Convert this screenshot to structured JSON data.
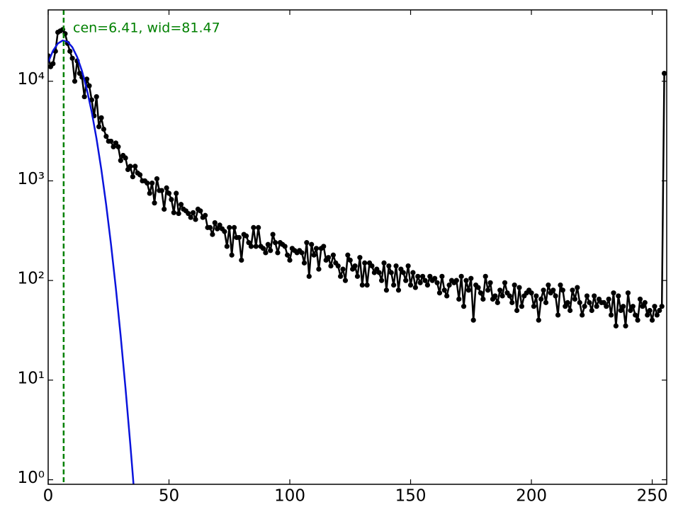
{
  "chart_data": {
    "type": "line",
    "log_y": true,
    "annotation": "cen=6.41, wid=81.47",
    "annotation_color": "#008000",
    "vline": 6.41,
    "vline_color": "#008000",
    "xlim": [
      0,
      256
    ],
    "ylim": [
      0.9,
      52000
    ],
    "xticks": [
      0,
      50,
      100,
      150,
      200,
      250
    ],
    "yticks": [
      {
        "value": 1,
        "label": "10⁰"
      },
      {
        "value": 10,
        "label": "10¹"
      },
      {
        "value": 100,
        "label": "10²"
      },
      {
        "value": 1000,
        "label": "10³"
      },
      {
        "value": 10000,
        "label": "10⁴"
      }
    ],
    "series": [
      {
        "color": "#000000",
        "markers": true,
        "x": [
          0,
          1,
          2,
          3,
          4,
          5,
          6,
          7,
          8,
          9,
          10,
          11,
          12,
          13,
          14,
          15,
          16,
          17,
          18,
          19,
          20,
          21,
          22,
          23,
          24,
          25,
          26,
          27,
          28,
          29,
          30,
          31,
          32,
          33,
          34,
          35,
          36,
          37,
          38,
          39,
          40,
          41,
          42,
          43,
          44,
          45,
          46,
          47,
          48,
          49,
          50,
          51,
          52,
          53,
          54,
          55,
          56,
          57,
          58,
          59,
          60,
          61,
          62,
          63,
          64,
          65,
          66,
          67,
          68,
          69,
          70,
          71,
          72,
          73,
          74,
          75,
          76,
          77,
          78,
          79,
          80,
          81,
          82,
          83,
          84,
          85,
          86,
          87,
          88,
          89,
          90,
          91,
          92,
          93,
          94,
          95,
          96,
          97,
          98,
          99,
          100,
          101,
          102,
          103,
          104,
          105,
          106,
          107,
          108,
          109,
          110,
          111,
          112,
          113,
          114,
          115,
          116,
          117,
          118,
          119,
          120,
          121,
          122,
          123,
          124,
          125,
          126,
          127,
          128,
          129,
          130,
          131,
          132,
          133,
          134,
          135,
          136,
          137,
          138,
          139,
          140,
          141,
          142,
          143,
          144,
          145,
          146,
          147,
          148,
          149,
          150,
          151,
          152,
          153,
          154,
          155,
          156,
          157,
          158,
          159,
          160,
          161,
          162,
          163,
          164,
          165,
          166,
          167,
          168,
          169,
          170,
          171,
          172,
          173,
          174,
          175,
          176,
          177,
          178,
          179,
          180,
          181,
          182,
          183,
          184,
          185,
          186,
          187,
          188,
          189,
          190,
          191,
          192,
          193,
          194,
          195,
          196,
          197,
          198,
          199,
          200,
          201,
          202,
          203,
          204,
          205,
          206,
          207,
          208,
          209,
          210,
          211,
          212,
          213,
          214,
          215,
          216,
          217,
          218,
          219,
          220,
          221,
          222,
          223,
          224,
          225,
          226,
          227,
          228,
          229,
          230,
          231,
          232,
          233,
          234,
          235,
          236,
          237,
          238,
          239,
          240,
          241,
          242,
          243,
          244,
          245,
          246,
          247,
          248,
          249,
          250,
          251,
          252,
          253,
          254,
          255
        ],
        "values": [
          18000,
          14000,
          15000,
          20000,
          31000,
          32000,
          33000,
          30000,
          24000,
          20000,
          17000,
          10000,
          16000,
          12000,
          11000,
          7000,
          10500,
          9000,
          6500,
          4500,
          7000,
          3500,
          4300,
          3300,
          2800,
          2500,
          2500,
          2200,
          2400,
          2200,
          1600,
          1800,
          1700,
          1300,
          1400,
          1100,
          1400,
          1200,
          1150,
          1000,
          1000,
          950,
          750,
          950,
          600,
          1050,
          800,
          800,
          520,
          850,
          750,
          650,
          480,
          750,
          470,
          580,
          520,
          500,
          470,
          430,
          480,
          410,
          520,
          500,
          430,
          450,
          340,
          340,
          290,
          380,
          330,
          360,
          330,
          310,
          220,
          340,
          180,
          340,
          270,
          270,
          160,
          290,
          280,
          240,
          220,
          340,
          220,
          340,
          220,
          210,
          190,
          230,
          200,
          290,
          240,
          190,
          240,
          230,
          220,
          180,
          160,
          210,
          200,
          190,
          200,
          190,
          150,
          240,
          110,
          230,
          180,
          210,
          130,
          210,
          220,
          160,
          170,
          140,
          180,
          150,
          140,
          110,
          130,
          100,
          180,
          160,
          130,
          140,
          110,
          170,
          90,
          150,
          90,
          150,
          140,
          120,
          130,
          120,
          100,
          150,
          80,
          140,
          120,
          90,
          140,
          80,
          130,
          120,
          100,
          140,
          90,
          120,
          85,
          110,
          95,
          110,
          100,
          90,
          110,
          100,
          105,
          95,
          75,
          110,
          80,
          70,
          90,
          100,
          95,
          100,
          65,
          110,
          55,
          100,
          80,
          105,
          40,
          90,
          85,
          75,
          65,
          110,
          80,
          95,
          65,
          70,
          60,
          80,
          70,
          95,
          75,
          70,
          60,
          90,
          50,
          85,
          55,
          70,
          75,
          80,
          75,
          55,
          70,
          40,
          65,
          80,
          60,
          90,
          75,
          80,
          70,
          45,
          90,
          80,
          55,
          60,
          50,
          80,
          65,
          85,
          60,
          45,
          55,
          70,
          60,
          50,
          70,
          55,
          65,
          60,
          60,
          55,
          65,
          45,
          75,
          35,
          70,
          50,
          55,
          35,
          75,
          50,
          55,
          45,
          40,
          65,
          55,
          60,
          45,
          50,
          40,
          55,
          45,
          50,
          55,
          12000
        ]
      },
      {
        "color": "#0a14dc",
        "markers": false,
        "x": [
          0,
          2,
          4,
          6,
          8,
          10,
          12,
          14,
          16,
          18,
          20,
          22,
          24,
          26,
          28,
          30,
          32,
          34,
          35,
          36
        ],
        "values": [
          15530,
          20240,
          23930,
          25650,
          24910,
          21940,
          17510,
          12670,
          8310,
          4940,
          2660,
          1300,
          576,
          231,
          84.2,
          27.8,
          8.31,
          2.25,
          1.13,
          0.55
        ]
      }
    ]
  }
}
